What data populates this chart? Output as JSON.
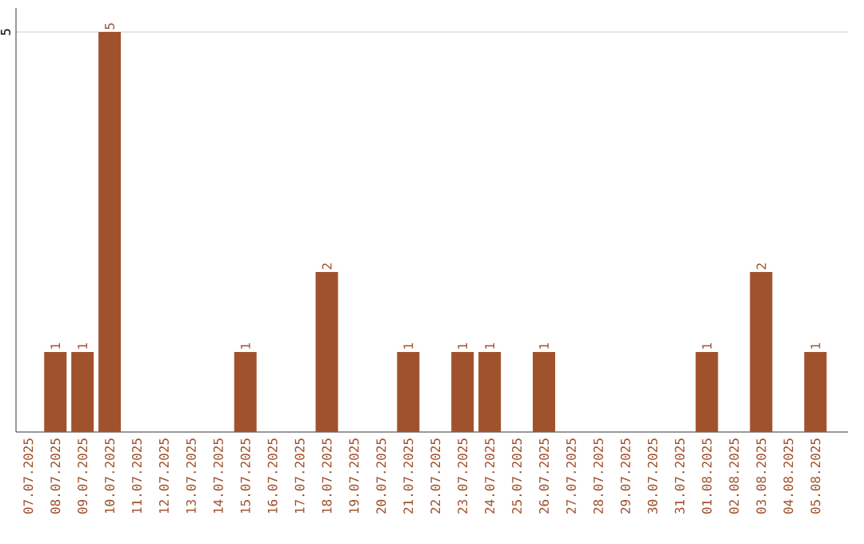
{
  "chart_data": {
    "type": "bar",
    "categories": [
      "07.07.2025",
      "08.07.2025",
      "09.07.2025",
      "10.07.2025",
      "11.07.2025",
      "12.07.2025",
      "13.07.2025",
      "14.07.2025",
      "15.07.2025",
      "16.07.2025",
      "17.07.2025",
      "18.07.2025",
      "19.07.2025",
      "20.07.2025",
      "21.07.2025",
      "22.07.2025",
      "23.07.2025",
      "24.07.2025",
      "25.07.2025",
      "26.07.2025",
      "27.07.2025",
      "28.07.2025",
      "29.07.2025",
      "30.07.2025",
      "31.07.2025",
      "01.08.2025",
      "02.08.2025",
      "03.08.2025",
      "04.08.2025",
      "05.08.2025"
    ],
    "values": [
      0,
      1,
      1,
      5,
      0,
      0,
      0,
      0,
      1,
      0,
      0,
      2,
      0,
      0,
      1,
      0,
      1,
      1,
      0,
      1,
      0,
      0,
      0,
      0,
      0,
      1,
      0,
      2,
      0,
      1
    ],
    "value_labels": [
      null,
      "1",
      "1",
      "5",
      null,
      null,
      null,
      null,
      "1",
      null,
      null,
      "2",
      null,
      null,
      "1",
      null,
      "1",
      "1",
      null,
      "1",
      null,
      null,
      null,
      null,
      null,
      "1",
      null,
      "2",
      null,
      "1"
    ],
    "color": "#a0522d",
    "ylim": [
      0,
      5.3
    ],
    "yticks": [
      5
    ],
    "grid": "y"
  }
}
